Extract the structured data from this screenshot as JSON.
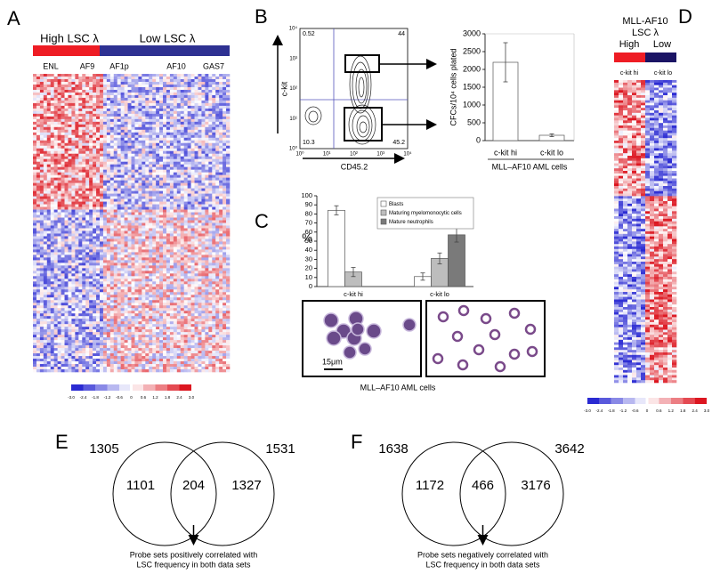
{
  "panel_labels": [
    "A",
    "B",
    "C",
    "D",
    "E",
    "F"
  ],
  "panel_a": {
    "groups": [
      "High LSC λ",
      "Low LSC λ"
    ],
    "columns": [
      "ENL",
      "AF9",
      "AF1p",
      "AF10",
      "GAS7"
    ],
    "color_scale": [
      "-3.0",
      "-2.4",
      "-1.8",
      "-1.2",
      "-0.6",
      "0",
      "0.6",
      "1.2",
      "1.8",
      "2.4",
      "3.0"
    ]
  },
  "panel_b_flow": {
    "y_label": "c-kit",
    "x_label": "CD45.2",
    "ticks": [
      "10⁰",
      "10¹",
      "10²",
      "10³",
      "10⁴"
    ],
    "quadrants": [
      "0.52",
      "44",
      "10.3",
      "45.2"
    ]
  },
  "chart_data": [
    {
      "type": "bar",
      "y_label": "CFCs/10⁴ cells plated",
      "x_label": "MLL–AF10 AML cells",
      "categories": [
        "c-kit hi",
        "c-kit lo"
      ],
      "values": [
        2200,
        150
      ],
      "errors": [
        550,
        40
      ],
      "color": "#ffffff",
      "ylim": [
        0,
        3000
      ],
      "yticks": [
        0,
        500,
        1000,
        1500,
        2000,
        2500,
        3000
      ]
    },
    {
      "type": "bar",
      "y_label": "%",
      "x_label": "MLL–AF10 AML cells",
      "categories": [
        "c-kit hi",
        "c-kit lo"
      ],
      "series": [
        {
          "name": "Blasts",
          "color": "#ffffff",
          "values": [
            84,
            11
          ],
          "errors": [
            5,
            4
          ]
        },
        {
          "name": "Maturing myelomonocytic cells",
          "color": "#bdbdbd",
          "values": [
            16,
            31
          ],
          "errors": [
            5,
            6
          ]
        },
        {
          "name": "Mature neutrophils",
          "color": "#7a7a7a",
          "values": [
            null,
            57
          ],
          "errors": [
            null,
            8
          ]
        }
      ],
      "ylim": [
        0,
        100
      ],
      "yticks": [
        0,
        10,
        20,
        30,
        40,
        50,
        60,
        70,
        80,
        90,
        100
      ]
    }
  ],
  "panel_c": {
    "scale_bar": "15μm"
  },
  "panel_d": {
    "title": [
      "MLL-AF10",
      "LSC λ"
    ],
    "groups": [
      "High",
      "Low"
    ],
    "columns": [
      "c-kit hi",
      "c-kit lo"
    ],
    "color_scale": [
      "-3.0",
      "-2.4",
      "-1.8",
      "-1.2",
      "-0.6",
      "0",
      "0.6",
      "1.2",
      "1.8",
      "2.4",
      "3.0"
    ]
  },
  "venn": [
    {
      "totals": [
        "1305",
        "1531"
      ],
      "regions": [
        "1101",
        "204",
        "1327"
      ],
      "caption": [
        "Probe sets positively correlated with",
        "LSC frequency in both data sets"
      ]
    },
    {
      "totals": [
        "1638",
        "3642"
      ],
      "regions": [
        "1172",
        "466",
        "3176"
      ],
      "caption": [
        "Probe sets negatively correlated with",
        "LSC frequency in both data sets"
      ]
    }
  ]
}
